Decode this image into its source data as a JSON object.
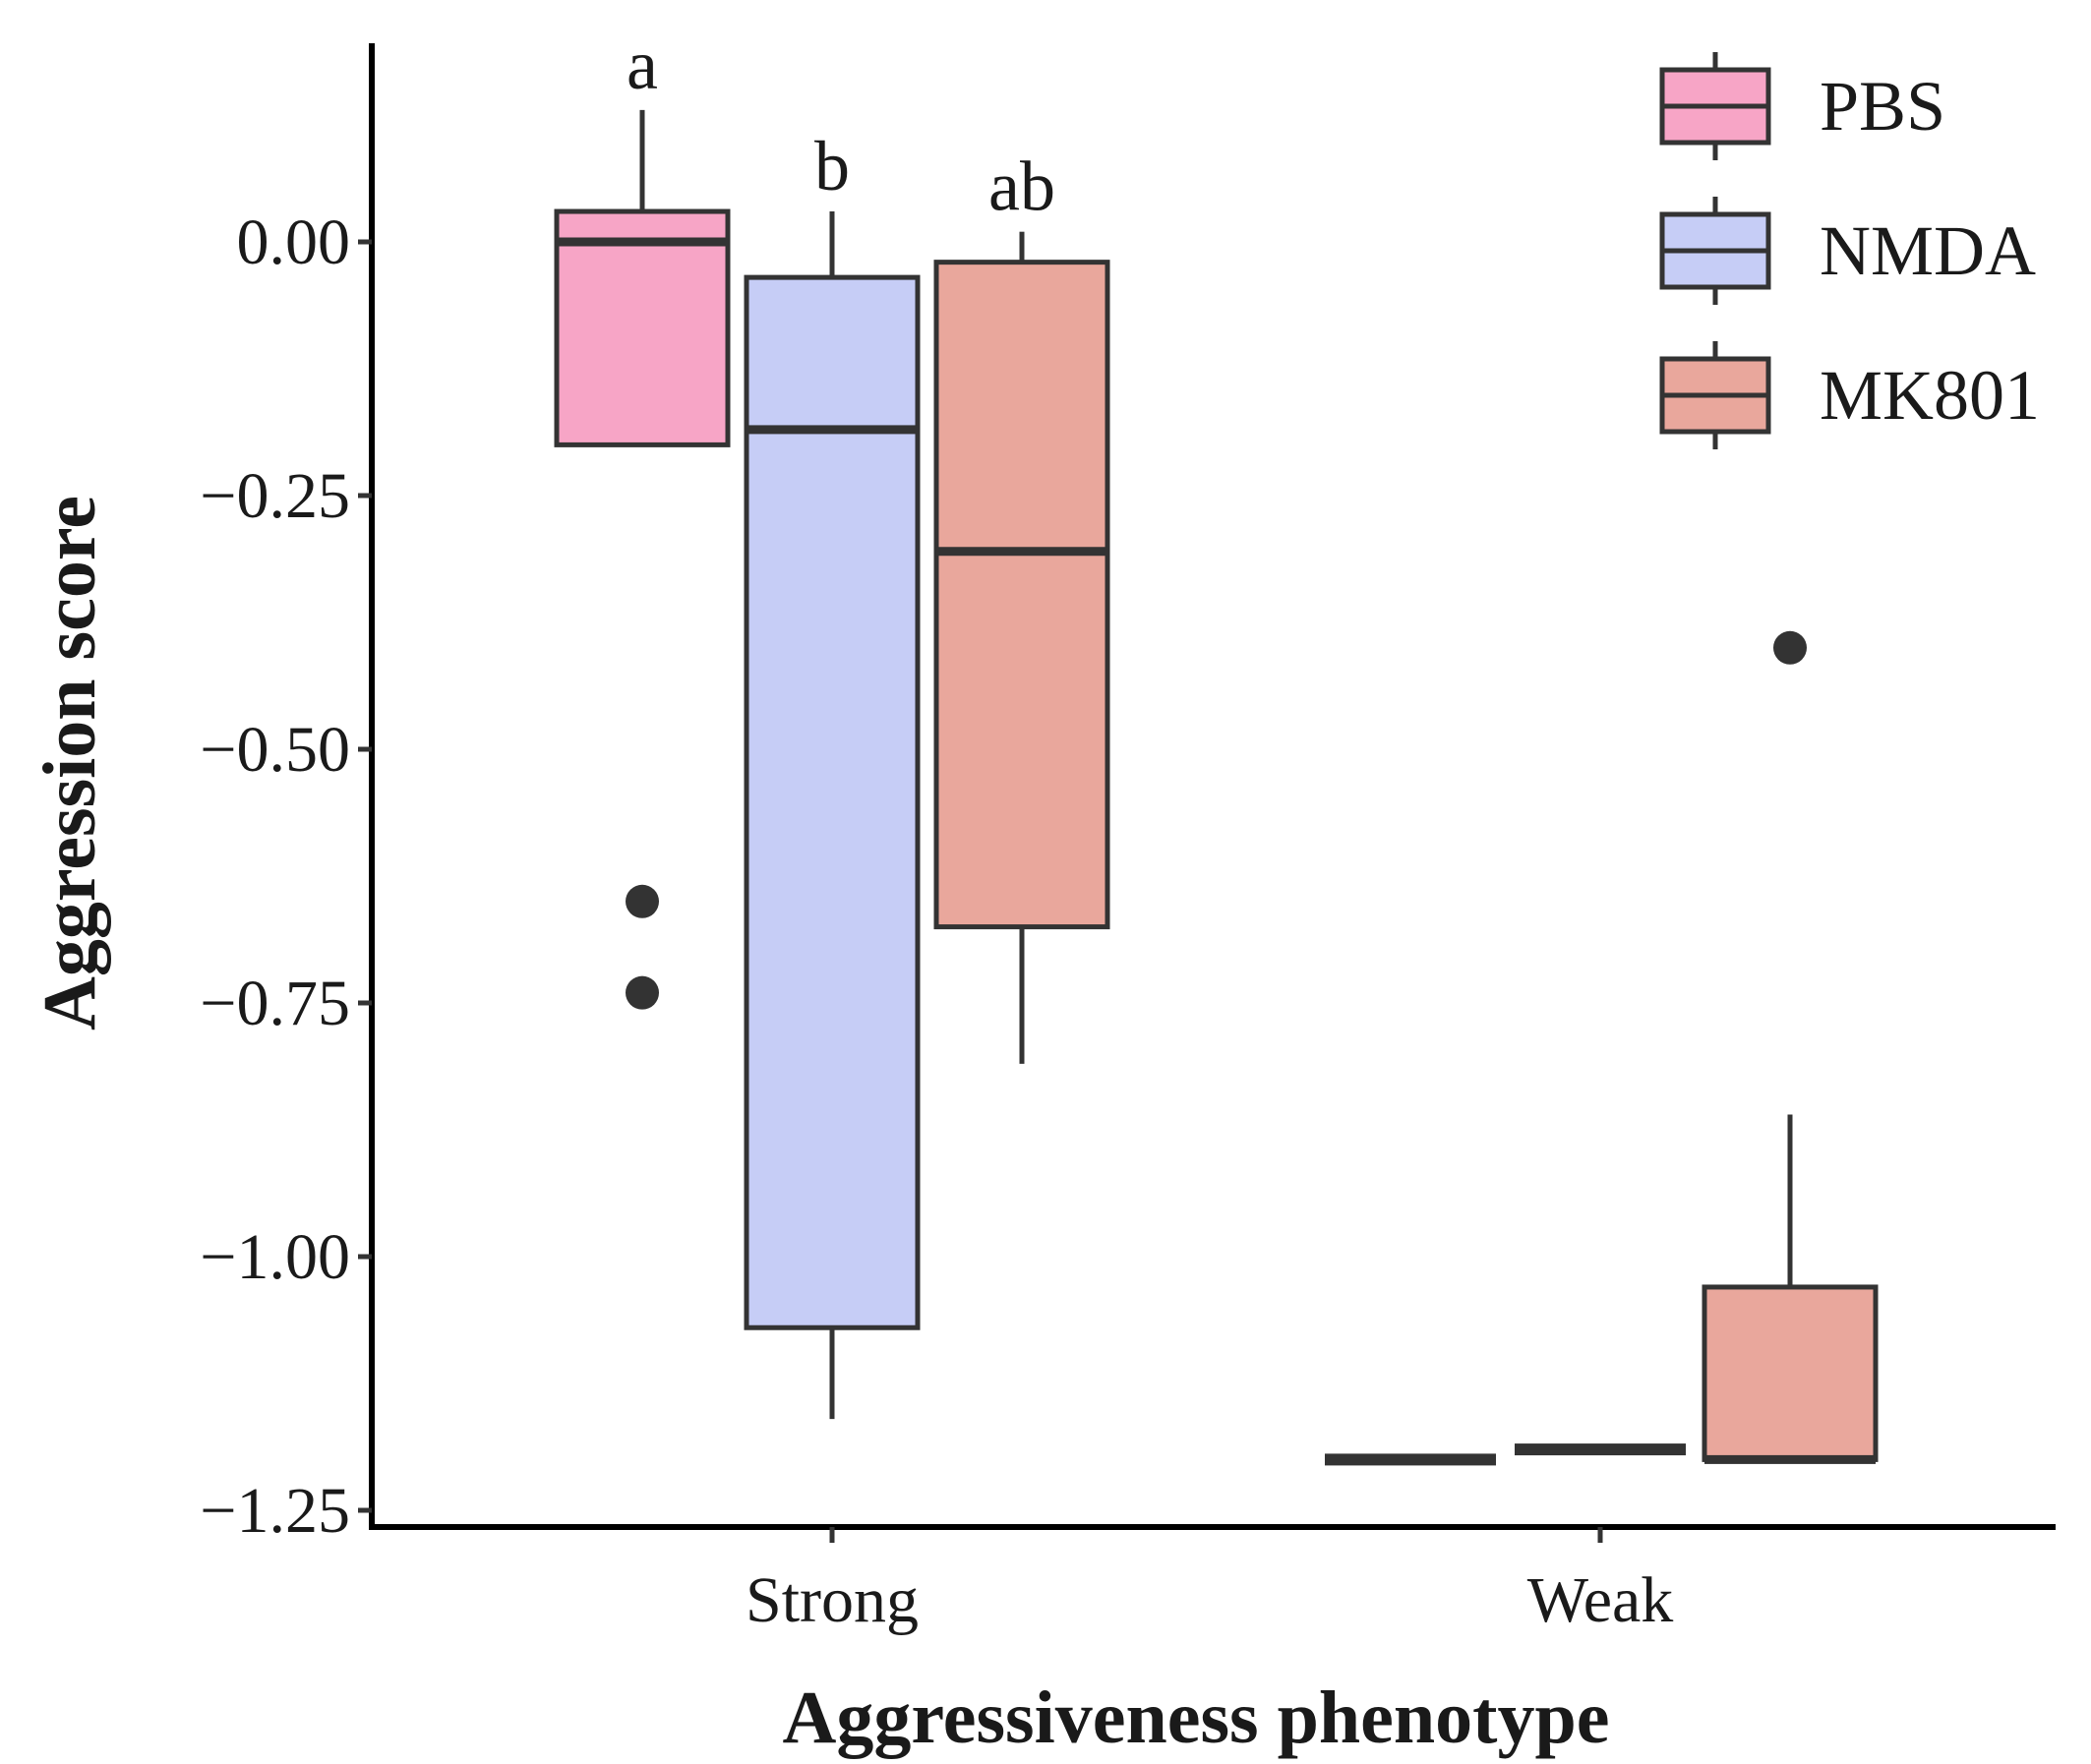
{
  "chart_data": {
    "type": "boxplot",
    "title": "",
    "xlabel": "Aggressiveness phenotype",
    "ylabel": "Aggression score",
    "ylim": [
      -1.27,
      0.2
    ],
    "yticks": [
      0.0,
      -0.25,
      -0.5,
      -0.75,
      -1.0,
      -1.25
    ],
    "ytick_labels": [
      "0.00",
      "−0.25",
      "−0.50",
      "−0.75",
      "−1.00",
      "−1.25"
    ],
    "categories": [
      "Strong",
      "Weak"
    ],
    "series": [
      {
        "name": "PBS",
        "color": "#F7A5C6",
        "boxes": [
          {
            "category": "Strong",
            "whisker_low": -0.2,
            "q1": -0.2,
            "median": 0.0,
            "q3": 0.03,
            "whisker_high": 0.13,
            "outliers": [
              -0.65,
              -0.74
            ],
            "letter": "a"
          },
          {
            "category": "Weak",
            "whisker_low": -1.2,
            "q1": -1.2,
            "median": -1.2,
            "q3": -1.2,
            "whisker_high": -1.2,
            "outliers": [],
            "letter": ""
          }
        ]
      },
      {
        "name": "NMDA",
        "color": "#C6CDF6",
        "boxes": [
          {
            "category": "Strong",
            "whisker_low": -1.16,
            "q1": -1.07,
            "median": -0.185,
            "q3": -0.035,
            "whisker_high": 0.03,
            "outliers": [],
            "letter": "b"
          },
          {
            "category": "Weak",
            "whisker_low": -1.19,
            "q1": -1.19,
            "median": -1.19,
            "q3": -1.19,
            "whisker_high": -1.19,
            "outliers": [],
            "letter": ""
          }
        ]
      },
      {
        "name": "MK801",
        "color": "#E9A79C",
        "boxes": [
          {
            "category": "Strong",
            "whisker_low": -0.81,
            "q1": -0.675,
            "median": -0.305,
            "q3": -0.02,
            "whisker_high": 0.01,
            "outliers": [],
            "letter": "ab"
          },
          {
            "category": "Weak",
            "whisker_low": -1.2,
            "q1": -1.2,
            "median": -1.2,
            "q3": -1.03,
            "whisker_high": -0.86,
            "outliers": [
              -0.4
            ],
            "letter": ""
          }
        ]
      }
    ],
    "legend": {
      "position": "top-right",
      "entries": [
        "PBS",
        "NMDA",
        "MK801"
      ]
    },
    "grid": false
  }
}
